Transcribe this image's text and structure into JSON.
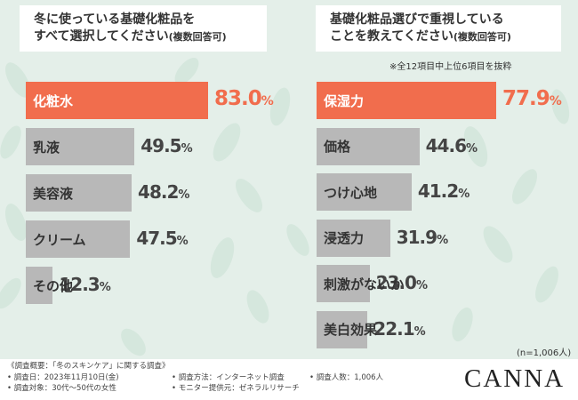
{
  "left_chart": {
    "title_line1": "冬に使っている基礎化粧品を",
    "title_line2": "すべて選択してください",
    "title_suffix": "(複数回答可)"
  },
  "right_chart": {
    "title_line1": "基礎化粧品選びで重視している",
    "title_line2": "ことを教えてください",
    "title_suffix": "(複数回答可)",
    "note": "※全12項目中上位6項目を抜粋",
    "n_note": "(n=1,006人)"
  },
  "chart_data": [
    {
      "type": "bar",
      "orientation": "horizontal",
      "title": "冬に使っている基礎化粧品をすべて選択してください(複数回答可)",
      "categories": [
        "化粧水",
        "乳液",
        "美容液",
        "クリーム",
        "その他"
      ],
      "values": [
        83.0,
        49.5,
        48.2,
        47.5,
        12.3
      ],
      "value_labels": [
        "83.0",
        "49.5",
        "48.2",
        "47.5",
        "12.3"
      ],
      "unit": "%",
      "highlight_index": 0,
      "highlight_color": "#f16d4d",
      "bar_color": "#b8b8b8"
    },
    {
      "type": "bar",
      "orientation": "horizontal",
      "title": "基礎化粧品選びで重視していることを教えてください(複数回答可)",
      "categories": [
        "保湿力",
        "価格",
        "つけ心地",
        "浸透力",
        "刺激がないか",
        "美白効果"
      ],
      "values": [
        77.9,
        44.6,
        41.2,
        31.9,
        23.0,
        22.1
      ],
      "value_labels": [
        "77.9",
        "44.6",
        "41.2",
        "31.9",
        "23.0",
        "22.1"
      ],
      "unit": "%",
      "highlight_index": 0,
      "highlight_color": "#f16d4d",
      "bar_color": "#b8b8b8"
    }
  ],
  "footer": {
    "overview": "《調査概要：「冬のスキンケア」に関する調査》",
    "survey_date": "• 調査日：2023年11月10日(金)",
    "survey_target": "• 調査対象：30代〜50代の女性",
    "survey_method": "• 調査方法：インターネット調査",
    "monitor_provider": "• モニター提供元：ゼネラルリサーチ",
    "survey_count": "• 調査人数：1,006人"
  },
  "brand": "CANNA",
  "colors": {
    "background": "#e4efe9",
    "accent": "#f16d4d",
    "bar": "#b8b8b8"
  }
}
